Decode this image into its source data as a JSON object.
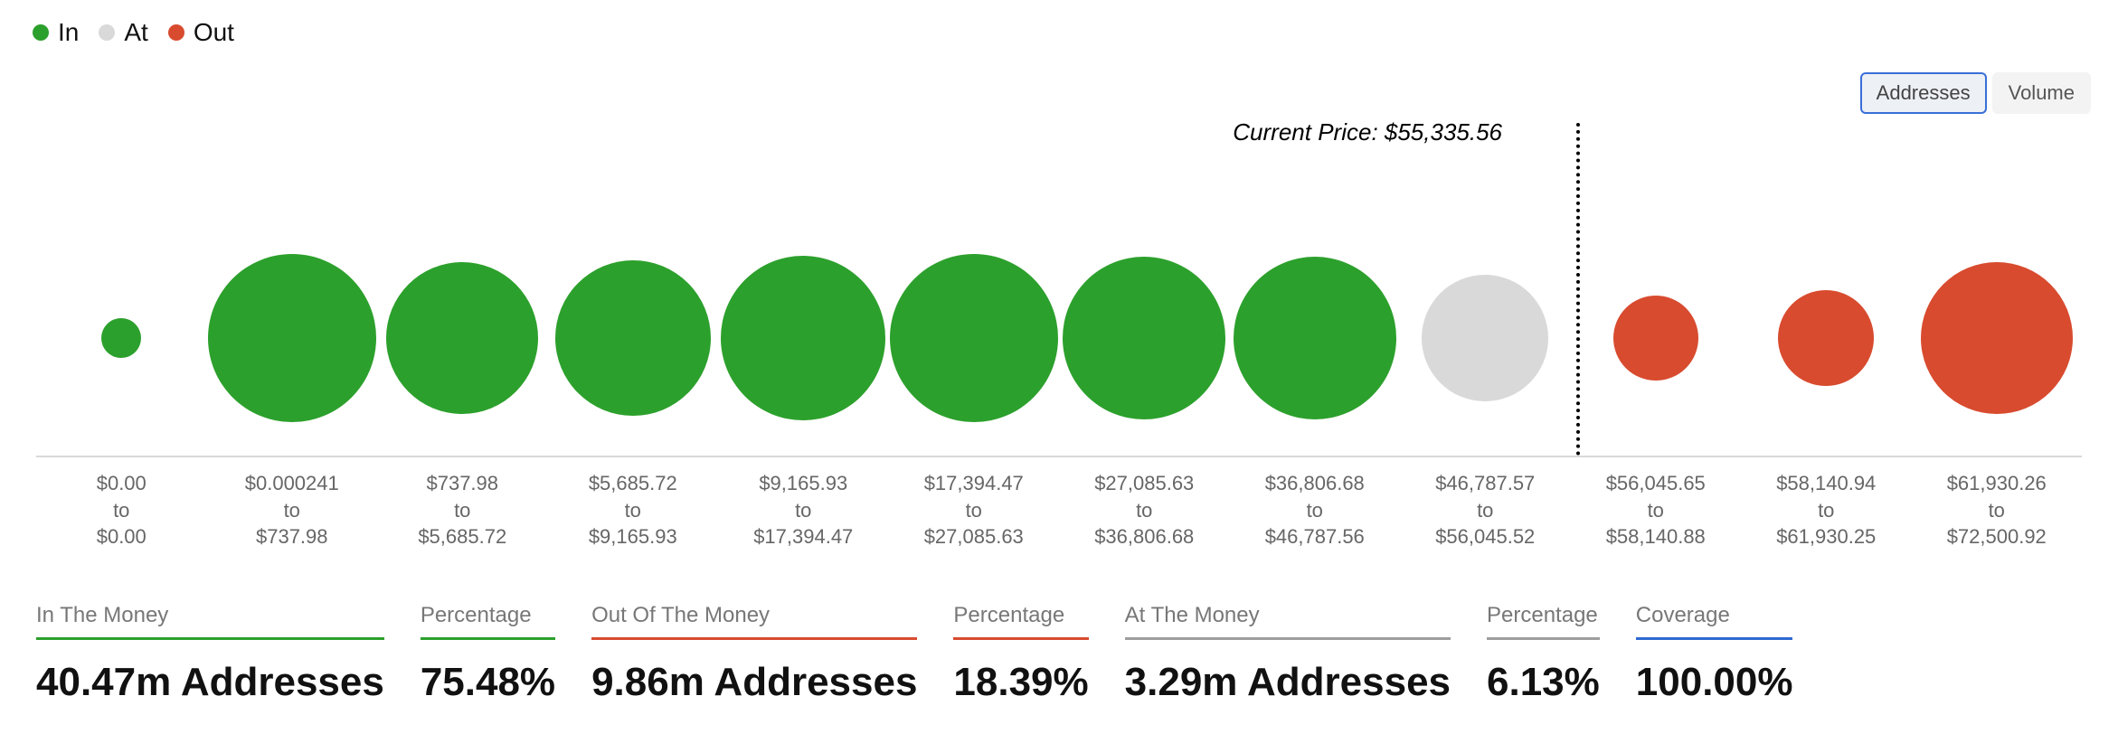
{
  "colors": {
    "in": "#2ca02c",
    "at": "#d9d9d9",
    "out": "#d84b2f",
    "coverage_line": "#2e6ad1",
    "at_line": "#9e9e9e"
  },
  "legend": {
    "in": "In",
    "at": "At",
    "out": "Out"
  },
  "toggle": {
    "addresses": "Addresses",
    "volume": "Volume"
  },
  "current_price": {
    "label_prefix": "Current Price: ",
    "value": "$55,335.56",
    "position_fraction": 0.753
  },
  "bubbles": [
    {
      "type": "in",
      "diameter": 44,
      "range_from": "$0.00",
      "range_to": "$0.00"
    },
    {
      "type": "in",
      "diameter": 186,
      "range_from": "$0.000241",
      "range_to": "$737.98"
    },
    {
      "type": "in",
      "diameter": 168,
      "range_from": "$737.98",
      "range_to": "$5,685.72"
    },
    {
      "type": "in",
      "diameter": 172,
      "range_from": "$5,685.72",
      "range_to": "$9,165.93"
    },
    {
      "type": "in",
      "diameter": 182,
      "range_from": "$9,165.93",
      "range_to": "$17,394.47"
    },
    {
      "type": "in",
      "diameter": 186,
      "range_from": "$17,394.47",
      "range_to": "$27,085.63"
    },
    {
      "type": "in",
      "diameter": 180,
      "range_from": "$27,085.63",
      "range_to": "$36,806.68"
    },
    {
      "type": "in",
      "diameter": 180,
      "range_from": "$36,806.68",
      "range_to": "$46,787.56"
    },
    {
      "type": "at",
      "diameter": 140,
      "range_from": "$46,787.57",
      "range_to": "$56,045.52"
    },
    {
      "type": "out",
      "diameter": 94,
      "range_from": "$56,045.65",
      "range_to": "$58,140.88"
    },
    {
      "type": "out",
      "diameter": 106,
      "range_from": "$58,140.94",
      "range_to": "$61,930.25"
    },
    {
      "type": "out",
      "diameter": 168,
      "range_from": "$61,930.26",
      "range_to": "$72,500.92"
    }
  ],
  "axis_word_to": "to",
  "stats": [
    {
      "label": "In The Money",
      "value": "40.47m Addresses",
      "line_color_key": "in"
    },
    {
      "label": "Percentage",
      "value": "75.48%",
      "line_color_key": "in"
    },
    {
      "label": "Out Of The Money",
      "value": "9.86m Addresses",
      "line_color_key": "out"
    },
    {
      "label": "Percentage",
      "value": "18.39%",
      "line_color_key": "out"
    },
    {
      "label": "At The Money",
      "value": "3.29m Addresses",
      "line_color_key": "at_line"
    },
    {
      "label": "Percentage",
      "value": "6.13%",
      "line_color_key": "at_line"
    },
    {
      "label": "Coverage",
      "value": "100.00%",
      "line_color_key": "coverage_line"
    }
  ]
}
